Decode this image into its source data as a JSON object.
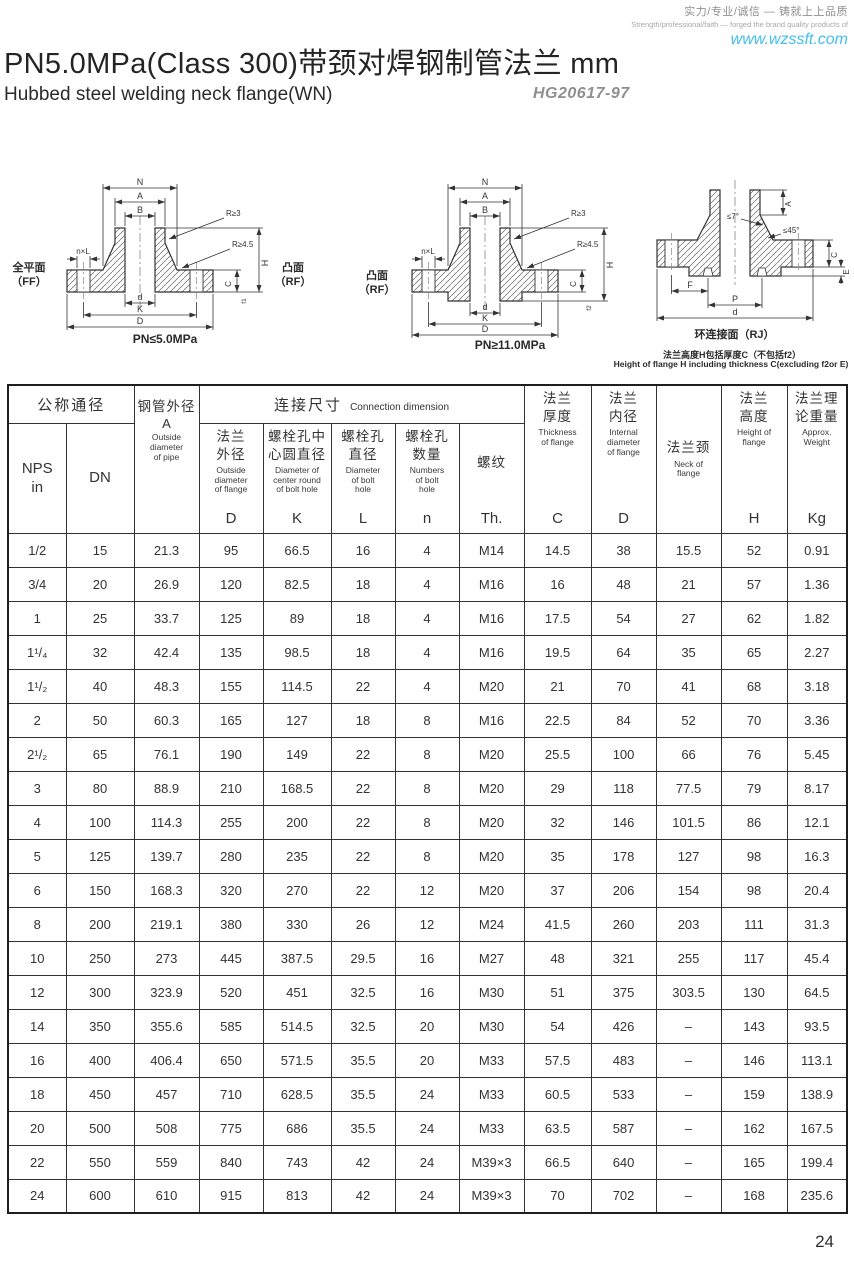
{
  "brand": {
    "tagline_cn": "实力/专业/诚信 — 铸就上上品质",
    "tagline_en": "Strength/professional/faith — forged the brand quality products of",
    "website": "www.wzssft.com",
    "accent_color": "#44bfea"
  },
  "header": {
    "title": "PN5.0MPa(Class 300)带颈对焊钢制管法兰  mm",
    "subtitle": "Hubbed steel welding neck flange(WN)",
    "standard": "HG20617-97"
  },
  "diagrams": {
    "d1": {
      "face_left": "全平面\n（FF）",
      "face_right": "凸面\n（RF）",
      "caption": "PN≤5.0MPa",
      "dim_n": "N",
      "dim_a": "A",
      "dim_b": "B",
      "dim_r1": "R≥3",
      "dim_r2": "R≥4.5",
      "dim_nxl": "n×L",
      "dim_h": "H",
      "dim_c": "C",
      "dim_f": "f1",
      "dim_d": "d",
      "dim_k": "K",
      "dim_dd": "D"
    },
    "d2": {
      "face_left": "凸面\n（RF）",
      "caption": "PN≥11.0MPa",
      "dim_n": "N",
      "dim_a": "A",
      "dim_b": "B",
      "dim_r1": "R≥3",
      "dim_r2": "R≥4.5",
      "dim_nxl": "n×L",
      "dim_h": "H",
      "dim_c": "C",
      "dim_f": "f2",
      "dim_d": "d",
      "dim_k": "K",
      "dim_dd": "D"
    },
    "d3": {
      "caption": "环连接面（RJ）",
      "note_cn": "法兰高度H包括厚度C（不包括f2）",
      "note_en": "Height of flange H including thickness C(excluding f2or E)",
      "dim_a": "A",
      "dim_angle1": "≤7°",
      "dim_angle2": "≤45°",
      "dim_c": "C",
      "dim_e": "E",
      "dim_f": "F",
      "dim_p": "P",
      "dim_d": "d"
    }
  },
  "table": {
    "nominal_group": "公称通径",
    "conn_group_cn": "连接尺寸",
    "conn_group_en": "Connection dimension",
    "nps": "NPS\nin",
    "dn": "DN",
    "pipe": {
      "cn": "钢管外径",
      "letter": "A",
      "en": "Outside\ndiameter\nof pipe"
    },
    "d_out": {
      "cn": "法兰\n外径",
      "en": "Outside\ndiameter\nof flange",
      "letter": "D"
    },
    "k": {
      "cn": "螺栓孔中\n心圆直径",
      "en": "Diameter of\ncenter round\nof bolt hole",
      "letter": "K"
    },
    "l": {
      "cn": "螺栓孔\n直径",
      "en": "Diameter\nof bolt\nhole",
      "letter": "L"
    },
    "n": {
      "cn": "螺栓孔\n数量",
      "en": "Numbers\nof bolt\nhole",
      "letter": "n"
    },
    "th": {
      "cn": "螺纹",
      "letter": "Th."
    },
    "c": {
      "cn": "法兰\n厚度",
      "en": "Thickness\nof flange",
      "letter": "C"
    },
    "d_in": {
      "cn": "法兰\n内径",
      "en": "Internal\ndiameter\nof flange",
      "letter": "D"
    },
    "neck": {
      "cn": "法兰颈",
      "en": "Neck of\nflange"
    },
    "h": {
      "cn": "法兰\n高度",
      "en": "Height of\nflange",
      "letter": "H"
    },
    "w": {
      "cn": "法兰理\n论重量",
      "en": "Approx.\nWeight",
      "letter": "Kg"
    },
    "rows": [
      [
        "1/2",
        "15",
        "21.3",
        "95",
        "66.5",
        "16",
        "4",
        "M14",
        "14.5",
        "38",
        "15.5",
        "52",
        "0.91"
      ],
      [
        "3/4",
        "20",
        "26.9",
        "120",
        "82.5",
        "18",
        "4",
        "M16",
        "16",
        "48",
        "21",
        "57",
        "1.36"
      ],
      [
        "1",
        "25",
        "33.7",
        "125",
        "89",
        "18",
        "4",
        "M16",
        "17.5",
        "54",
        "27",
        "62",
        "1.82"
      ],
      [
        "1¹/₄",
        "32",
        "42.4",
        "135",
        "98.5",
        "18",
        "4",
        "M16",
        "19.5",
        "64",
        "35",
        "65",
        "2.27"
      ],
      [
        "1¹/₂",
        "40",
        "48.3",
        "155",
        "114.5",
        "22",
        "4",
        "M20",
        "21",
        "70",
        "41",
        "68",
        "3.18"
      ],
      [
        "2",
        "50",
        "60.3",
        "165",
        "127",
        "18",
        "8",
        "M16",
        "22.5",
        "84",
        "52",
        "70",
        "3.36"
      ],
      [
        "2¹/₂",
        "65",
        "76.1",
        "190",
        "149",
        "22",
        "8",
        "M20",
        "25.5",
        "100",
        "66",
        "76",
        "5.45"
      ],
      [
        "3",
        "80",
        "88.9",
        "210",
        "168.5",
        "22",
        "8",
        "M20",
        "29",
        "118",
        "77.5",
        "79",
        "8.17"
      ],
      [
        "4",
        "100",
        "114.3",
        "255",
        "200",
        "22",
        "8",
        "M20",
        "32",
        "146",
        "101.5",
        "86",
        "12.1"
      ],
      [
        "5",
        "125",
        "139.7",
        "280",
        "235",
        "22",
        "8",
        "M20",
        "35",
        "178",
        "127",
        "98",
        "16.3"
      ],
      [
        "6",
        "150",
        "168.3",
        "320",
        "270",
        "22",
        "12",
        "M20",
        "37",
        "206",
        "154",
        "98",
        "20.4"
      ],
      [
        "8",
        "200",
        "219.1",
        "380",
        "330",
        "26",
        "12",
        "M24",
        "41.5",
        "260",
        "203",
        "111",
        "31.3"
      ],
      [
        "10",
        "250",
        "273",
        "445",
        "387.5",
        "29.5",
        "16",
        "M27",
        "48",
        "321",
        "255",
        "117",
        "45.4"
      ],
      [
        "12",
        "300",
        "323.9",
        "520",
        "451",
        "32.5",
        "16",
        "M30",
        "51",
        "375",
        "303.5",
        "130",
        "64.5"
      ],
      [
        "14",
        "350",
        "355.6",
        "585",
        "514.5",
        "32.5",
        "20",
        "M30",
        "54",
        "426",
        "–",
        "143",
        "93.5"
      ],
      [
        "16",
        "400",
        "406.4",
        "650",
        "571.5",
        "35.5",
        "20",
        "M33",
        "57.5",
        "483",
        "–",
        "146",
        "113.1"
      ],
      [
        "18",
        "450",
        "457",
        "710",
        "628.5",
        "35.5",
        "24",
        "M33",
        "60.5",
        "533",
        "–",
        "159",
        "138.9"
      ],
      [
        "20",
        "500",
        "508",
        "775",
        "686",
        "35.5",
        "24",
        "M33",
        "63.5",
        "587",
        "–",
        "162",
        "167.5"
      ],
      [
        "22",
        "550",
        "559",
        "840",
        "743",
        "42",
        "24",
        "M39×3",
        "66.5",
        "640",
        "–",
        "165",
        "199.4"
      ],
      [
        "24",
        "600",
        "610",
        "915",
        "813",
        "42",
        "24",
        "M39×3",
        "70",
        "702",
        "–",
        "168",
        "235.6"
      ]
    ]
  },
  "page_number": "24"
}
